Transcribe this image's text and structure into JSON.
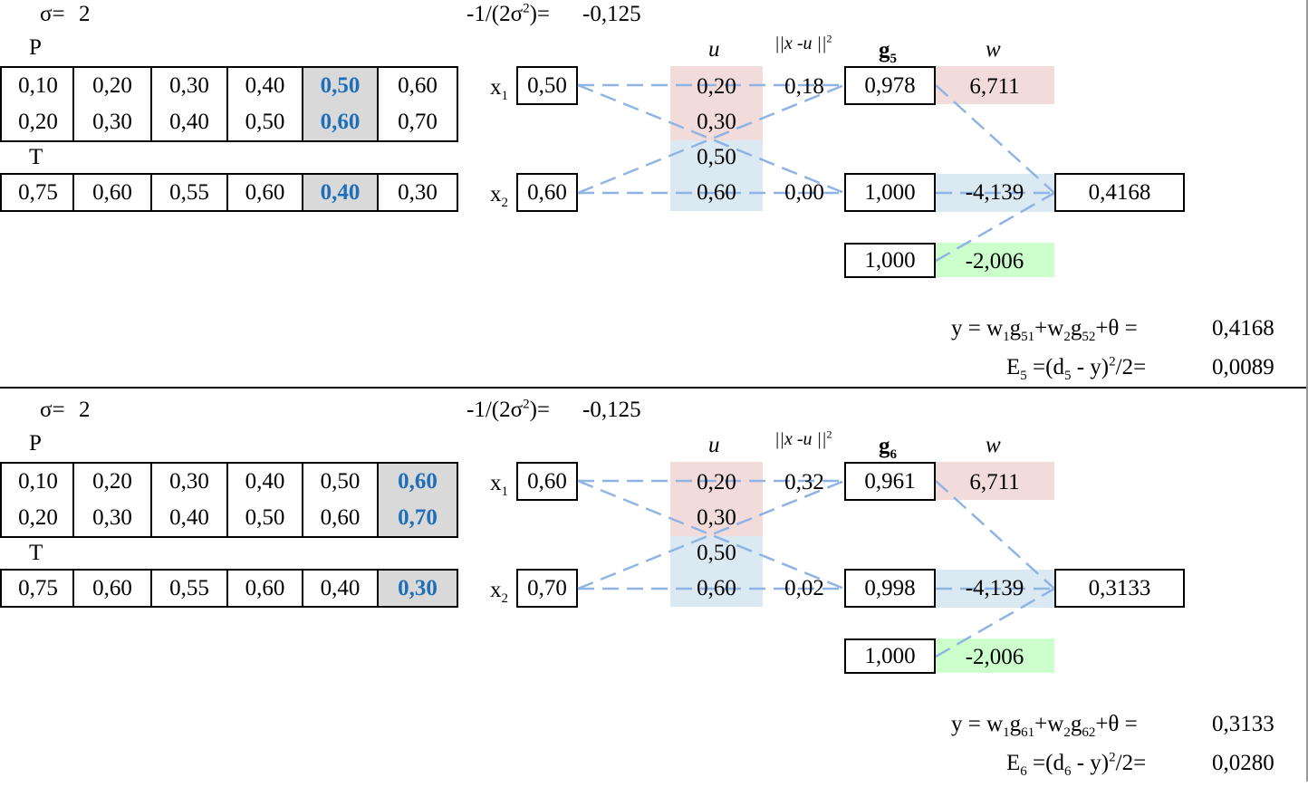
{
  "panels": [
    {
      "sigma_label": "σ=",
      "sigma_value": "2",
      "coef_label_a": "-1/(2σ",
      "coef_label_sup": "2",
      "coef_label_b": ")=",
      "coef_value": "-0,125",
      "p_label": "P",
      "t_label": "T",
      "p_rows": [
        [
          "0,10",
          "0,20",
          "0,30",
          "0,40",
          "0,50",
          "0,60"
        ],
        [
          "0,20",
          "0,30",
          "0,40",
          "0,50",
          "0,60",
          "0,70"
        ]
      ],
      "t_row": [
        "0,75",
        "0,60",
        "0,55",
        "0,60",
        "0,40",
        "0,30"
      ],
      "selected_col": 4,
      "x_label": "x",
      "x1_sub": "1",
      "x2_sub": "2",
      "x1": "0,50",
      "x2": "0,60",
      "u_header": "u",
      "dist_header_a": "||x -u ||",
      "dist_header_sup": "2",
      "g_header": "g",
      "g_header_sub": "5",
      "w_header": "w",
      "u_values": [
        "0,20",
        "0,30",
        "0,50",
        "0,60"
      ],
      "dist_values": [
        "0,18",
        "0,00"
      ],
      "g_values": [
        "0,978",
        "1,000",
        "1,000"
      ],
      "w_values": [
        "6,711",
        "-4,139",
        "-2,006"
      ],
      "output": "0,4168",
      "y_formula": {
        "pre": "y = w",
        "s1": "1",
        "g1": "g",
        "s2": "51",
        "mid": "+w",
        "s3": "2",
        "g2": "g",
        "s4": "52",
        "post": "+θ ="
      },
      "y_value": "0,4168",
      "e_formula": {
        "pre": "E",
        "s1": "5",
        "mid": " =(d",
        "s2": "5",
        "post1": " - y)",
        "sup": "2",
        "post2": "/2="
      },
      "e_value": "0,0089"
    },
    {
      "sigma_label": "σ=",
      "sigma_value": "2",
      "coef_label_a": "-1/(2σ",
      "coef_label_sup": "2",
      "coef_label_b": ")=",
      "coef_value": "-0,125",
      "p_label": "P",
      "t_label": "T",
      "p_rows": [
        [
          "0,10",
          "0,20",
          "0,30",
          "0,40",
          "0,50",
          "0,60"
        ],
        [
          "0,20",
          "0,30",
          "0,40",
          "0,50",
          "0,60",
          "0,70"
        ]
      ],
      "t_row": [
        "0,75",
        "0,60",
        "0,55",
        "0,60",
        "0,40",
        "0,30"
      ],
      "selected_col": 5,
      "x_label": "x",
      "x1_sub": "1",
      "x2_sub": "2",
      "x1": "0,60",
      "x2": "0,70",
      "u_header": "u",
      "dist_header_a": "||x -u ||",
      "dist_header_sup": "2",
      "g_header": "g",
      "g_header_sub": "6",
      "w_header": "w",
      "u_values": [
        "0,20",
        "0,30",
        "0,50",
        "0,60"
      ],
      "dist_values": [
        "0,32",
        "0,02"
      ],
      "g_values": [
        "0,961",
        "0,998",
        "1,000"
      ],
      "w_values": [
        "6,711",
        "-4,139",
        "-2,006"
      ],
      "output": "0,3133",
      "y_formula": {
        "pre": "y = w",
        "s1": "1",
        "g1": "g",
        "s2": "61",
        "mid": "+w",
        "s3": "2",
        "g2": "g",
        "s4": "62",
        "post": "+θ ="
      },
      "y_value": "0,3133",
      "e_formula": {
        "pre": "E",
        "s1": "6",
        "mid": " =(d",
        "s2": "6",
        "post1": " - y)",
        "sup": "2",
        "post2": "/2="
      },
      "e_value": "0,0280"
    }
  ],
  "colors": {
    "u_red_bg": "#f2dcdb",
    "u_blue_bg": "#dbe9f3",
    "w_red_bg": "#f2dcdb",
    "w_blue_bg": "#dbe9f3",
    "w_green_bg": "#ccffcc",
    "selected_bg": "#d9d9d9",
    "selected_text": "#1f6fb8",
    "dashed_line": "#8fb4e3"
  }
}
